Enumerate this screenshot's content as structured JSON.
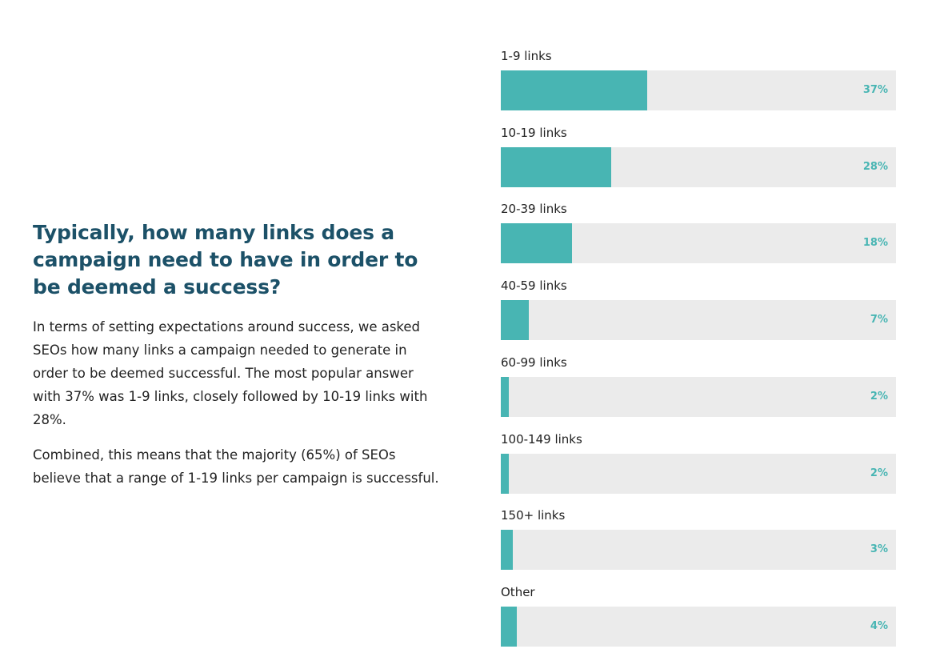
{
  "text": {
    "heading": "Typically, how many links does a campaign need to have in order to be deemed a success?",
    "paragraphs": [
      "In terms of setting expectations around success, we asked SEOs how many links a campaign needed to generate in order to be deemed successful. The most popular answer with 37% was 1-9 links, closely followed by 10-19 links with 28%.",
      "Combined, this means that the majority (65%) of SEOs believe that a range of 1-19 links per campaign is successful."
    ]
  },
  "colors": {
    "heading": "#1c5168",
    "bar": "#48b5b3",
    "track": "#ebebeb",
    "value_label": "#48b5b3"
  },
  "chart_data": {
    "type": "bar",
    "orientation": "horizontal",
    "categories": [
      "1-9 links",
      "10-19 links",
      "20-39 links",
      "40-59 links",
      "60-99 links",
      "100-149 links",
      "150+ links",
      "Other"
    ],
    "values": [
      37,
      28,
      18,
      7,
      2,
      2,
      3,
      4
    ],
    "value_labels": [
      "37%",
      "28%",
      "18%",
      "7%",
      "2%",
      "2%",
      "3%",
      "4%"
    ],
    "xlim": [
      0,
      100
    ],
    "grid": false,
    "legend": "none"
  }
}
